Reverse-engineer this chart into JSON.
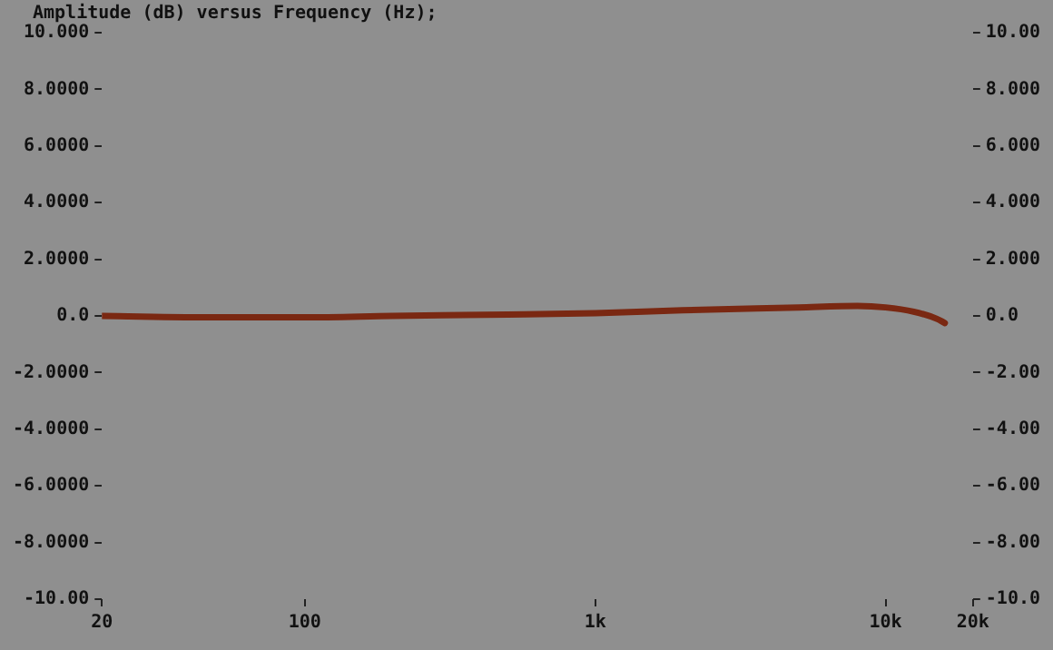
{
  "chart_data": {
    "type": "line",
    "title": "Amplitude (dB) versus Frequency (Hz);",
    "x": [
      20,
      50,
      100,
      200,
      500,
      1000,
      2000,
      5000,
      8000,
      10000,
      12500,
      15000,
      16000
    ],
    "series": [
      {
        "color": "#7a2812",
        "values": [
          0.0,
          -0.05,
          -0.05,
          0.0,
          0.05,
          0.1,
          0.2,
          0.3,
          0.35,
          0.3,
          0.15,
          -0.1,
          -0.25
        ]
      }
    ],
    "log": "x",
    "xlim": [
      20,
      20000
    ],
    "xticks": [
      {
        "value": 20,
        "label": "20"
      },
      {
        "value": 100,
        "label": "100"
      },
      {
        "value": 1000,
        "label": "1k"
      },
      {
        "value": 10000,
        "label": "10k"
      },
      {
        "value": 20000,
        "label": "20k"
      }
    ],
    "ylim": [
      -10,
      10
    ],
    "yticks": [
      {
        "value": -10,
        "label": "-10.00"
      },
      {
        "value": -8,
        "label": "-8.0000"
      },
      {
        "value": -6,
        "label": "-6.0000"
      },
      {
        "value": -4,
        "label": "-4.0000"
      },
      {
        "value": -2,
        "label": "-2.0000"
      },
      {
        "value": 0,
        "label": "0.0"
      },
      {
        "value": 2,
        "label": "2.0000"
      },
      {
        "value": 4,
        "label": "4.0000"
      },
      {
        "value": 6,
        "label": "6.0000"
      },
      {
        "value": 8,
        "label": "8.0000"
      },
      {
        "value": 10,
        "label": "10.000"
      }
    ],
    "y2lim": [
      -10,
      10
    ],
    "y2ticks": [
      {
        "value": -10,
        "label": "-10.0"
      },
      {
        "value": -8,
        "label": "-8.00"
      },
      {
        "value": -6,
        "label": "-6.00"
      },
      {
        "value": -4,
        "label": "-4.00"
      },
      {
        "value": -2,
        "label": "-2.00"
      },
      {
        "value": 0,
        "label": "0.0"
      },
      {
        "value": 2,
        "label": "2.000"
      },
      {
        "value": 4,
        "label": "4.000"
      },
      {
        "value": 6,
        "label": "6.000"
      },
      {
        "value": 8,
        "label": "8.000"
      },
      {
        "value": 10,
        "label": "10.00"
      }
    ],
    "grid": false,
    "legend": false,
    "marker": "none",
    "line_style": "solid"
  }
}
